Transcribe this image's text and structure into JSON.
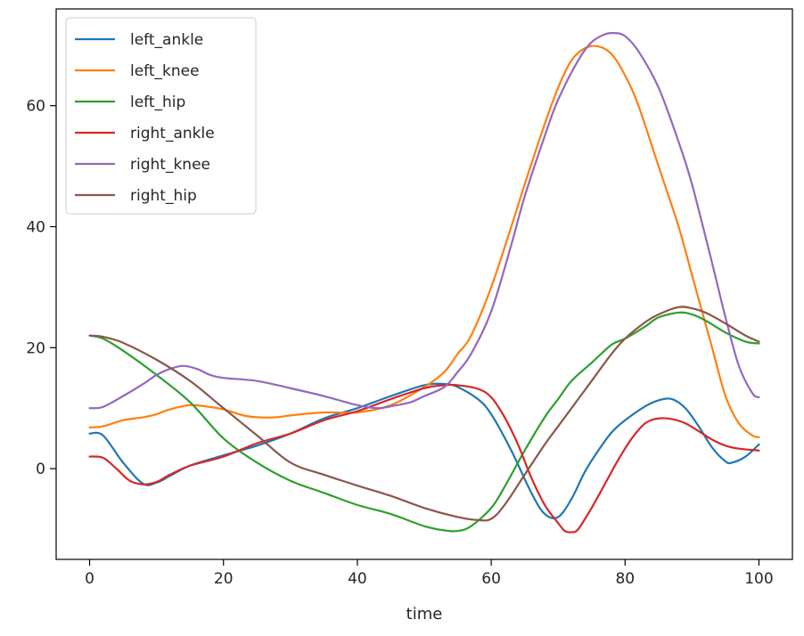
{
  "chart_data": {
    "type": "line",
    "title": "",
    "xlabel": "time",
    "ylabel": "",
    "xlim": [
      -5,
      105
    ],
    "ylim": [
      -15,
      76
    ],
    "xticks": [
      0,
      20,
      40,
      60,
      80,
      100
    ],
    "yticks": [
      0,
      20,
      40,
      60
    ],
    "grid": false,
    "legend_position": "upper-left",
    "series": [
      {
        "name": "left_ankle",
        "color": "#1f77b4",
        "x": [
          0,
          2,
          5,
          8,
          10,
          12,
          15,
          20,
          25,
          30,
          35,
          40,
          45,
          50,
          53,
          55,
          58,
          60,
          63,
          66,
          68,
          70,
          72,
          74,
          76,
          78,
          80,
          83,
          85,
          87,
          89,
          91,
          93,
          95,
          96,
          98,
          100
        ],
        "y": [
          5.8,
          5.5,
          1,
          -2.5,
          -2.3,
          -1.2,
          0.5,
          2.2,
          3.8,
          5.8,
          8.3,
          10,
          12,
          13.8,
          14,
          13.5,
          11.5,
          9,
          3,
          -4,
          -7.5,
          -8,
          -5,
          -0.5,
          3,
          6,
          8,
          10.3,
          11.3,
          11.5,
          10,
          7,
          3.5,
          1.2,
          1,
          2,
          4
        ]
      },
      {
        "name": "left_knee",
        "color": "#ff7f0e",
        "x": [
          0,
          2,
          5,
          8,
          10,
          12,
          15,
          18,
          20,
          23,
          25,
          28,
          30,
          35,
          40,
          45,
          50,
          53,
          55,
          57,
          60,
          63,
          65,
          68,
          70,
          72,
          74,
          76,
          78,
          80,
          82,
          85,
          88,
          90,
          93,
          95,
          97,
          99,
          100
        ],
        "y": [
          6.8,
          7,
          8,
          8.5,
          9,
          9.8,
          10.5,
          10.2,
          9.8,
          8.8,
          8.5,
          8.5,
          8.8,
          9.3,
          9.3,
          10.5,
          13.5,
          16,
          19,
          22,
          30,
          40,
          47,
          57,
          63,
          67.5,
          69.5,
          69.8,
          68.5,
          65,
          60,
          50,
          40,
          32,
          20,
          12,
          7.5,
          5.5,
          5.2
        ]
      },
      {
        "name": "left_hip",
        "color": "#2ca02c",
        "x": [
          0,
          2,
          5,
          10,
          15,
          20,
          25,
          30,
          35,
          40,
          45,
          50,
          53,
          55,
          57,
          60,
          62,
          65,
          68,
          70,
          72,
          75,
          78,
          80,
          83,
          85,
          88,
          90,
          92,
          95,
          98,
          100
        ],
        "y": [
          22,
          21.5,
          19.5,
          15.5,
          11,
          5,
          1,
          -2,
          -4,
          -6,
          -7.5,
          -9.5,
          -10.2,
          -10.3,
          -9.5,
          -6.5,
          -3,
          3,
          8.5,
          11.5,
          14.5,
          17.5,
          20.5,
          21.5,
          23.5,
          25,
          25.8,
          25.5,
          24.5,
          22.5,
          21,
          20.7
        ]
      },
      {
        "name": "right_ankle",
        "color": "#d62728",
        "x": [
          0,
          2,
          4,
          6,
          8,
          10,
          12,
          15,
          20,
          25,
          30,
          35,
          40,
          45,
          50,
          53,
          55,
          58,
          60,
          62,
          64,
          66,
          68,
          70,
          71,
          72,
          73,
          75,
          77,
          79,
          81,
          83,
          85,
          87,
          89,
          91,
          93,
          95,
          97,
          100
        ],
        "y": [
          2,
          1.8,
          0,
          -2,
          -2.6,
          -2.2,
          -1,
          0.5,
          2,
          4.2,
          5.8,
          8,
          9.5,
          11.5,
          13.3,
          13.8,
          13.8,
          13.2,
          11.8,
          8.5,
          4,
          -1.5,
          -6,
          -9,
          -10.3,
          -10.5,
          -10,
          -6.5,
          -2.5,
          1.5,
          5,
          7.5,
          8.3,
          8.2,
          7.5,
          6.2,
          4.8,
          3.8,
          3.3,
          3
        ]
      },
      {
        "name": "right_knee",
        "color": "#9467bd",
        "x": [
          0,
          2,
          5,
          8,
          10,
          12,
          14,
          16,
          18,
          20,
          25,
          30,
          35,
          40,
          43,
          45,
          48,
          50,
          53,
          55,
          57,
          60,
          63,
          65,
          68,
          70,
          73,
          75,
          77,
          78.5,
          80,
          82,
          85,
          88,
          90,
          93,
          95,
          97,
          99,
          100
        ],
        "y": [
          10,
          10.2,
          12,
          14,
          15.5,
          16.5,
          17,
          16.5,
          15.5,
          15,
          14.5,
          13.3,
          12,
          10.5,
          10,
          10.3,
          11,
          12,
          13.5,
          16,
          19,
          26,
          37,
          45,
          55,
          61,
          67.5,
          70.5,
          71.8,
          72,
          71.5,
          69,
          63,
          54,
          47,
          34,
          25,
          17,
          12.5,
          11.8
        ]
      },
      {
        "name": "right_hip",
        "color": "#8c564b",
        "x": [
          0,
          2,
          5,
          10,
          15,
          20,
          25,
          30,
          35,
          40,
          45,
          50,
          55,
          58,
          60,
          62,
          65,
          68,
          70,
          73,
          75,
          78,
          80,
          83,
          85,
          88,
          90,
          92,
          95,
          98,
          100
        ],
        "y": [
          22,
          21.8,
          20.8,
          18,
          14.5,
          10,
          5.5,
          1,
          -1,
          -2.8,
          -4.5,
          -6.5,
          -8,
          -8.5,
          -8.3,
          -6,
          -1,
          4,
          7,
          11.5,
          14.5,
          19,
          21.5,
          24.2,
          25.5,
          26.7,
          26.5,
          25.8,
          24,
          22,
          21
        ]
      }
    ]
  }
}
